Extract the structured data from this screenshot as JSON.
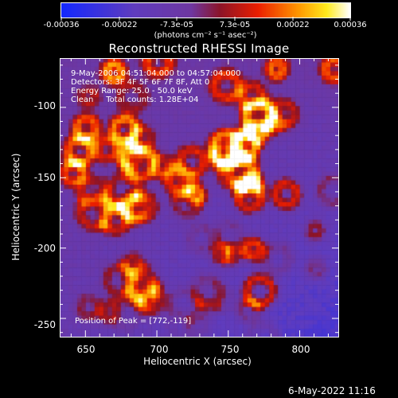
{
  "colorbar": {
    "tick_labels": [
      "-0.00036",
      "-0.00022",
      "-7.3e-05",
      "7.3e-05",
      "0.00022",
      "0.00036"
    ],
    "units": "(photons cm⁻² s⁻¹ asec⁻²)"
  },
  "image": {
    "title": "Reconstructed RHESSI Image",
    "annotations": {
      "time_range": "9-May-2006 04:51:04.000 to 04:57:04.000",
      "detectors": "Detectors: 3F 4F 5F 6F 7F 8F, Att 0",
      "energy_range": "Energy Range: 25.0 - 50.0 keV",
      "method": "Clean     Total counts: 1.28E+04",
      "peak": "Position of Peak = [772,-119]"
    },
    "x_axis": {
      "label": "Heliocentric X (arcsec)",
      "ticks": [
        "650",
        "700",
        "750",
        "800"
      ]
    },
    "y_axis": {
      "label": "Heliocentric Y (arcsec)",
      "ticks": [
        "-100",
        "-150",
        "-200",
        "-250"
      ]
    }
  },
  "footer": {
    "timestamp": "6-May-2022 11:16"
  }
}
